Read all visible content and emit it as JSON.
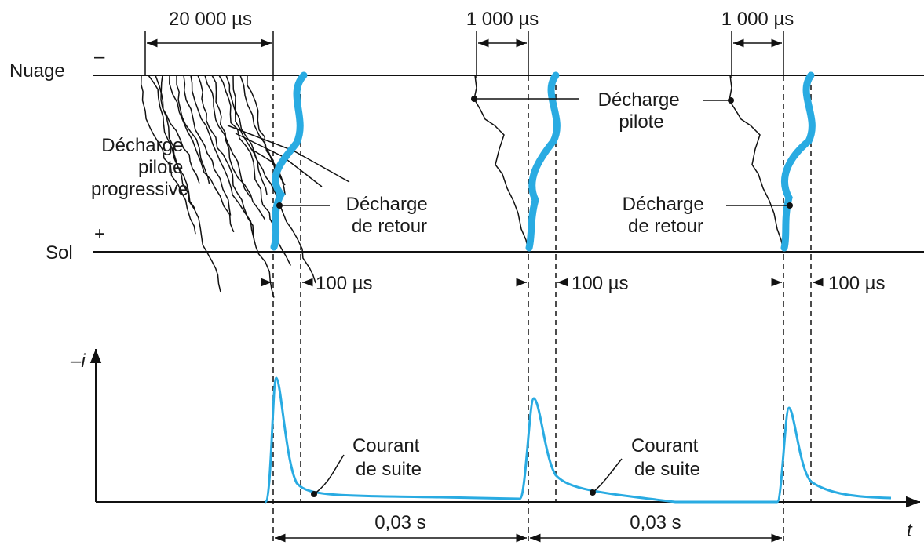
{
  "cloud_label": "Nuage",
  "cloud_sign": "–",
  "ground_label": "Sol",
  "ground_sign": "+",
  "leader_intervals": [
    "20 000 µs",
    "1 000 µs",
    "1 000 µs"
  ],
  "return_widths": [
    "100 µs",
    "100 µs",
    "100 µs"
  ],
  "labels": {
    "stepped_leader": [
      "Décharge",
      "pilote",
      "progressive"
    ],
    "return_stroke_1": [
      "Décharge",
      "de retour"
    ],
    "dart_leader": [
      "Décharge",
      "pilote"
    ],
    "return_stroke_2": [
      "Décharge",
      "de retour"
    ],
    "continuing_current_1": [
      "Courant",
      "de suite"
    ],
    "continuing_current_2": [
      "Courant",
      "de suite"
    ]
  },
  "axis": {
    "y_label": "–i",
    "x_label": "t"
  },
  "spacings": [
    "0,03 s",
    "0,03 s"
  ]
}
